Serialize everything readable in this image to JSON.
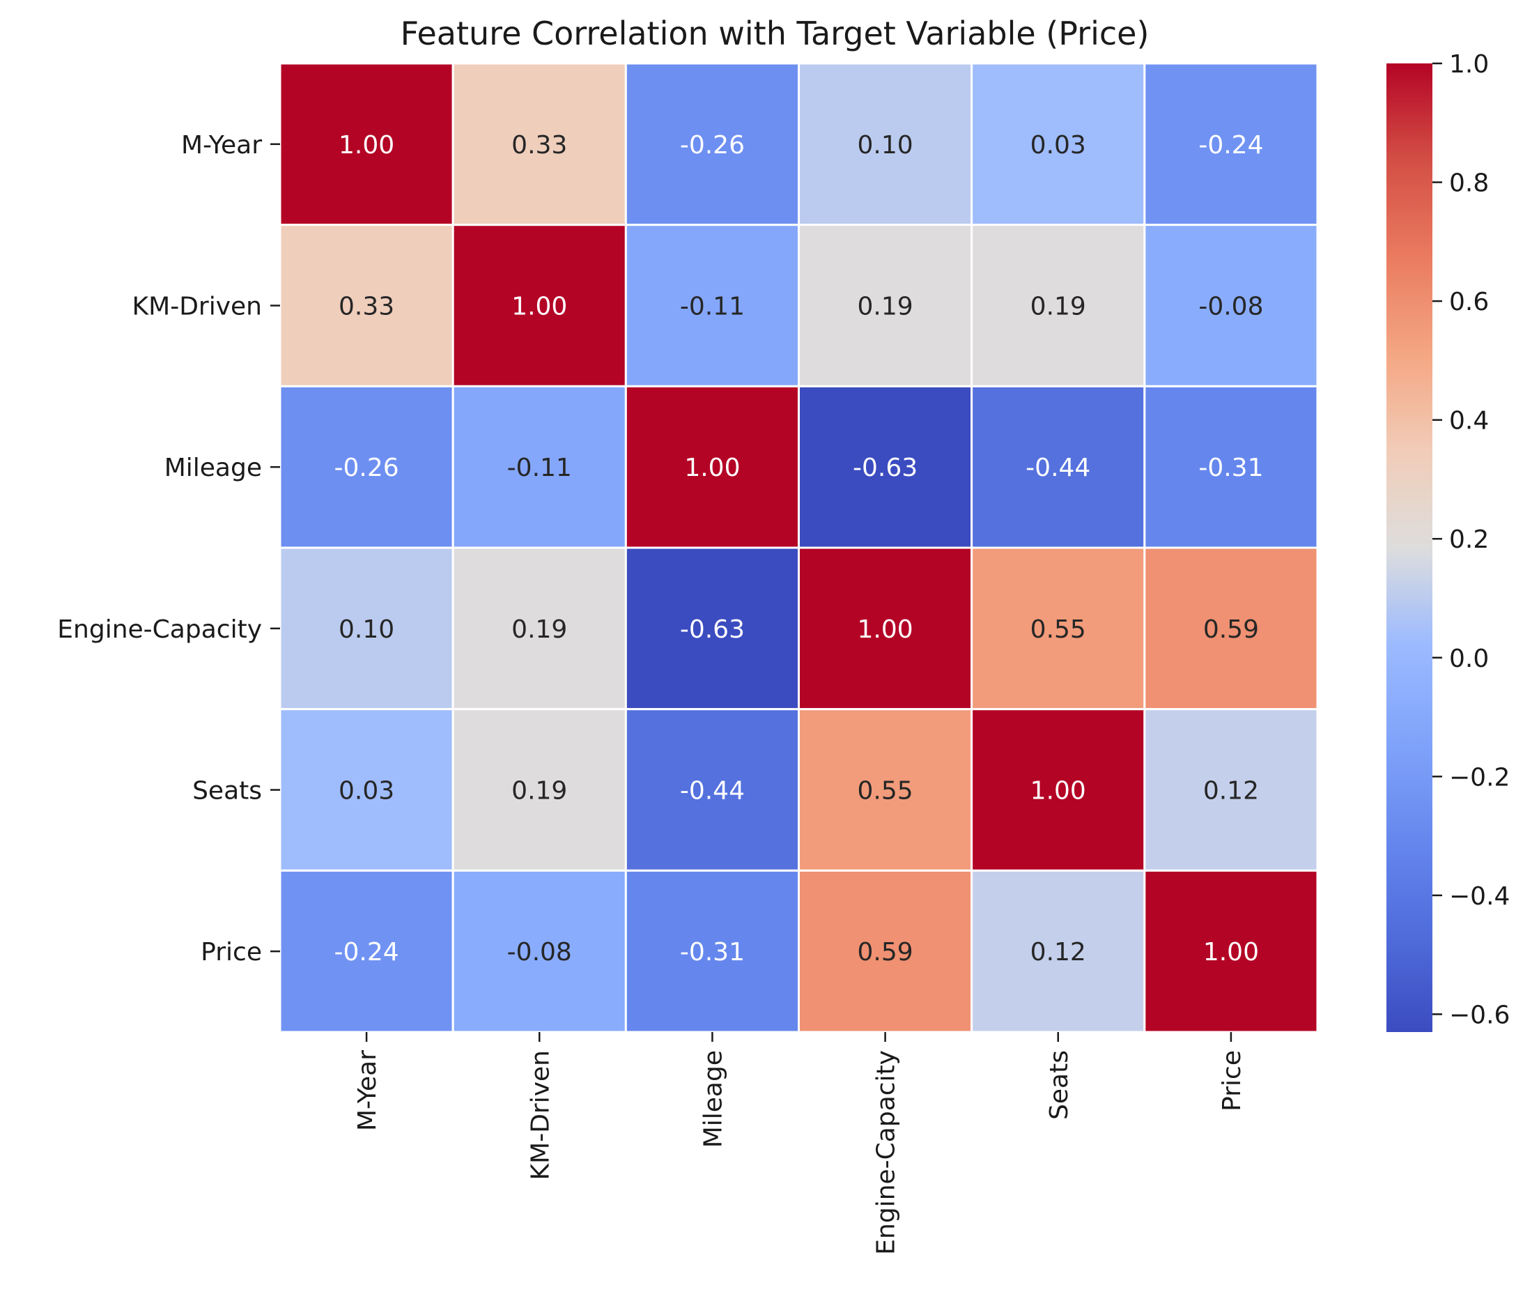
{
  "chart_data": {
    "type": "heatmap",
    "title": "Feature Correlation with Target Variable (Price)",
    "xlabel": "",
    "ylabel": "",
    "row_labels": [
      "M-Year",
      "KM-Driven",
      "Mileage",
      "Engine-Capacity",
      "Seats",
      "Price"
    ],
    "col_labels": [
      "M-Year",
      "KM-Driven",
      "Mileage",
      "Engine-Capacity",
      "Seats",
      "Price"
    ],
    "values": [
      [
        1.0,
        0.33,
        -0.26,
        0.1,
        0.03,
        -0.24
      ],
      [
        0.33,
        1.0,
        -0.11,
        0.19,
        0.19,
        -0.08
      ],
      [
        -0.26,
        -0.11,
        1.0,
        -0.63,
        -0.44,
        -0.31
      ],
      [
        0.1,
        0.19,
        -0.63,
        1.0,
        0.55,
        0.59
      ],
      [
        0.03,
        0.19,
        -0.44,
        0.55,
        1.0,
        0.12
      ],
      [
        -0.24,
        -0.08,
        -0.31,
        0.59,
        0.12,
        1.0
      ]
    ],
    "value_format": "2 decimals",
    "colormap": "coolwarm",
    "vmin": -0.63,
    "vmax": 1.0,
    "colorbar": {
      "ticks": [
        1.0,
        0.8,
        0.6,
        0.4,
        0.2,
        0.0,
        -0.2,
        -0.4,
        -0.6
      ],
      "tick_labels": [
        "1.0",
        "0.8",
        "0.6",
        "0.4",
        "0.2",
        "0.0",
        "−0.2",
        "−0.4",
        "−0.6"
      ]
    },
    "cell_separator_color": "#ffffff",
    "grid": false
  }
}
